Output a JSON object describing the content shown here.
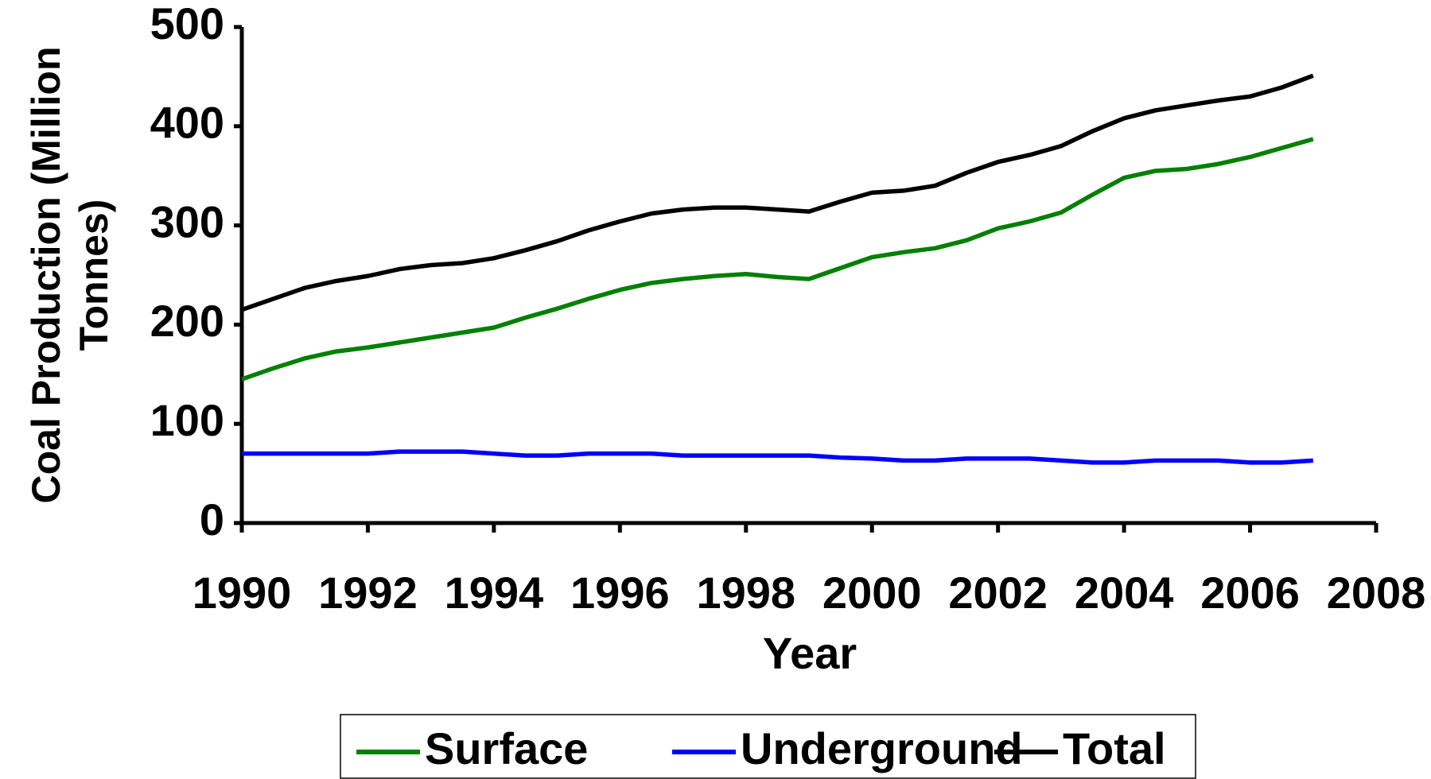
{
  "chart_data": {
    "type": "line",
    "xlabel": "Year",
    "ylabel": [
      "Coal Production (Million",
      "Tonnes)"
    ],
    "x": [
      1990,
      1990.5,
      1991,
      1991.5,
      1992,
      1992.5,
      1993,
      1993.5,
      1994,
      1994.5,
      1995,
      1995.5,
      1996,
      1996.5,
      1997,
      1997.5,
      1998,
      1998.5,
      1999,
      1999.5,
      2000,
      2000.5,
      2001,
      2001.5,
      2002,
      2002.5,
      2003,
      2003.5,
      2004,
      2004.5,
      2005,
      2005.5,
      2006,
      2006.5,
      2007
    ],
    "series": [
      {
        "name": "Surface",
        "color": "#008000",
        "values": [
          145,
          156,
          166,
          173,
          177,
          182,
          187,
          192,
          197,
          207,
          216,
          226,
          235,
          242,
          246,
          249,
          251,
          248,
          246,
          257,
          268,
          273,
          277,
          285,
          297,
          304,
          313,
          331,
          348,
          355,
          357,
          362,
          369,
          378,
          387
        ]
      },
      {
        "name": "Underground",
        "color": "#0000ff",
        "values": [
          70,
          70,
          70,
          70,
          70,
          72,
          72,
          72,
          70,
          68,
          68,
          70,
          70,
          70,
          68,
          68,
          68,
          68,
          68,
          66,
          65,
          63,
          63,
          65,
          65,
          65,
          63,
          61,
          61,
          63,
          63,
          63,
          61,
          61,
          63
        ]
      },
      {
        "name": "Total",
        "color": "#000000",
        "values": [
          215,
          226,
          237,
          244,
          249,
          256,
          260,
          262,
          267,
          275,
          284,
          295,
          304,
          312,
          316,
          318,
          318,
          316,
          314,
          324,
          333,
          335,
          340,
          353,
          364,
          371,
          380,
          395,
          408,
          416,
          421,
          426,
          430,
          439,
          451
        ]
      }
    ],
    "xlim": [
      1990,
      2008
    ],
    "xticks": [
      1990,
      1992,
      1994,
      1996,
      1998,
      2000,
      2002,
      2004,
      2006,
      2008
    ],
    "ylim": [
      0,
      500
    ],
    "yticks": [
      0,
      100,
      200,
      300,
      400,
      500
    ],
    "legend": "bottom"
  }
}
